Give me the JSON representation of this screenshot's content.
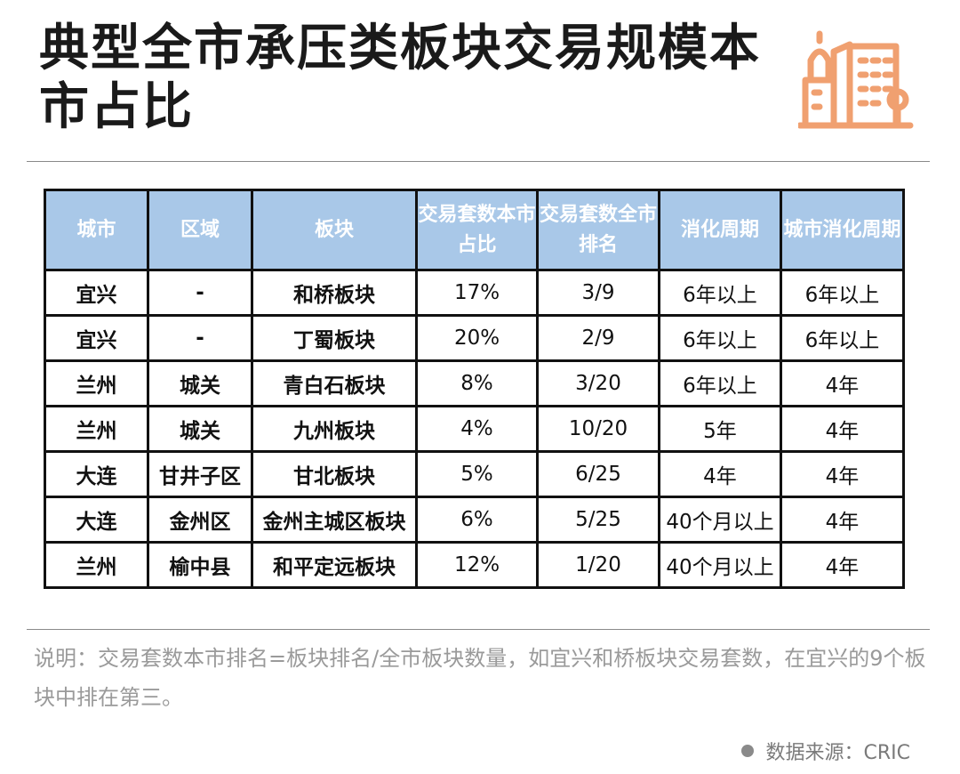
{
  "title": "典型全市承压类板块交易规模本市占比",
  "logo_icon": "city-buildings-icon",
  "colors": {
    "header_bg": "#a9c8e8",
    "logo": "#f0a070"
  },
  "chart_data": {
    "type": "table",
    "columns": [
      "城市",
      "区域",
      "板块",
      "交易套数本市占比",
      "交易套数全市排名",
      "消化周期",
      "城市消化周期"
    ],
    "rows": [
      [
        "宜兴",
        "-",
        "和桥板块",
        "17%",
        "3/9",
        "6年以上",
        "6年以上"
      ],
      [
        "宜兴",
        "-",
        "丁蜀板块",
        "20%",
        "2/9",
        "6年以上",
        "6年以上"
      ],
      [
        "兰州",
        "城关",
        "青白石板块",
        "8%",
        "3/20",
        "6年以上",
        "4年"
      ],
      [
        "兰州",
        "城关",
        "九州板块",
        "4%",
        "10/20",
        "5年",
        "4年"
      ],
      [
        "大连",
        "甘井子区",
        "甘北板块",
        "5%",
        "6/25",
        "4年",
        "4年"
      ],
      [
        "大连",
        "金州区",
        "金州主城区板块",
        "6%",
        "5/25",
        "40个月以上",
        "4年"
      ],
      [
        "兰州",
        "榆中县",
        "和平定远板块",
        "12%",
        "1/20",
        "40个月以上",
        "4年"
      ]
    ]
  },
  "note": "说明：交易套数本市排名=板块排名/全市板块数量，如宜兴和桥板块交易套数，在宜兴的9个板块中排在第三。",
  "source": "数据来源：CRIC"
}
